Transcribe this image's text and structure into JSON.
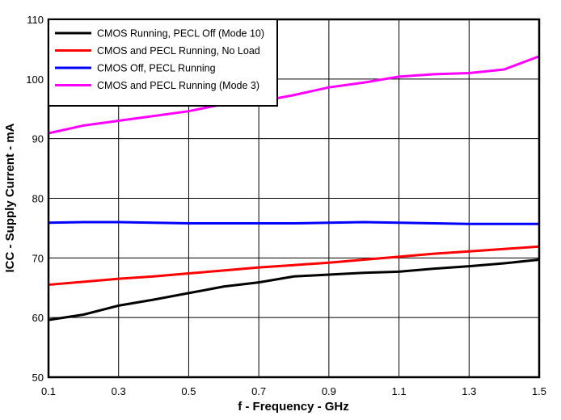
{
  "chart_data": {
    "type": "line",
    "title": "",
    "xlabel": "f - Frequency - GHz",
    "ylabel": "ICC - Supply Current - mA",
    "xlim": [
      0.1,
      1.5
    ],
    "ylim": [
      50,
      110
    ],
    "xticks": [
      0.1,
      0.3,
      0.5,
      0.7,
      0.9,
      1.1,
      1.3,
      1.5
    ],
    "yticks": [
      50,
      60,
      70,
      80,
      90,
      100,
      110
    ],
    "grid": true,
    "legend_position": "top-left",
    "x": [
      0.1,
      0.2,
      0.3,
      0.4,
      0.5,
      0.6,
      0.7,
      0.8,
      0.9,
      1.0,
      1.1,
      1.2,
      1.3,
      1.4,
      1.5
    ],
    "series": [
      {
        "name": "CMOS Running, PECL Off (Mode 10)",
        "color": "#000000",
        "values": [
          59.6,
          60.5,
          62.0,
          63.0,
          64.1,
          65.2,
          65.9,
          66.9,
          67.2,
          67.5,
          67.7,
          68.2,
          68.6,
          69.1,
          69.7
        ]
      },
      {
        "name": "CMOS and PECL Running, No Load",
        "color": "#ff0000",
        "values": [
          65.5,
          66.0,
          66.5,
          66.9,
          67.4,
          67.9,
          68.4,
          68.8,
          69.2,
          69.7,
          70.2,
          70.7,
          71.1,
          71.5,
          71.9
        ]
      },
      {
        "name": "CMOS Off, PECL Running",
        "color": "#0000ff",
        "values": [
          75.9,
          76.0,
          76.0,
          75.9,
          75.8,
          75.8,
          75.8,
          75.8,
          75.9,
          76.0,
          75.9,
          75.8,
          75.7,
          75.7,
          75.7
        ]
      },
      {
        "name": "CMOS and PECL Running (Mode 3)",
        "color": "#ff00ff",
        "values": [
          90.9,
          92.2,
          93.0,
          93.8,
          94.6,
          95.8,
          96.2,
          97.3,
          98.6,
          99.4,
          100.4,
          100.8,
          101.0,
          101.6,
          103.8
        ]
      }
    ]
  }
}
